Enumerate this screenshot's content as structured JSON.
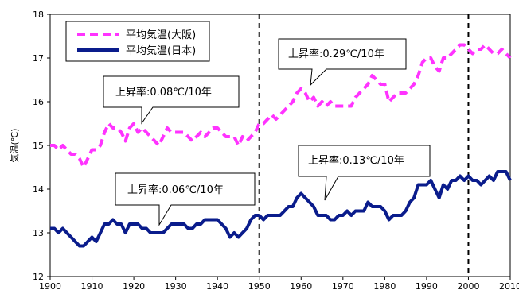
{
  "chart_data": {
    "type": "line",
    "xlabel": "",
    "ylabel": "気温(℃)",
    "xlim": [
      1900,
      2010
    ],
    "ylim": [
      12,
      18
    ],
    "x_ticks": [
      "1900",
      "1910",
      "1920",
      "1930",
      "1940",
      "1950",
      "1960",
      "1970",
      "1980",
      "1990",
      "2000",
      "2010"
    ],
    "y_ticks": [
      "12",
      "13",
      "14",
      "15",
      "16",
      "17",
      "18"
    ],
    "grid": false,
    "legend_position": "top-left",
    "series": [
      {
        "name": "平均気温(大阪)",
        "color": "#ff33ff",
        "style": "dashed",
        "points": [
          [
            1900,
            15.0
          ],
          [
            1901,
            15.0
          ],
          [
            1902,
            14.9
          ],
          [
            1903,
            15.0
          ],
          [
            1904,
            14.9
          ],
          [
            1905,
            14.8
          ],
          [
            1906,
            14.8
          ],
          [
            1907,
            14.7
          ],
          [
            1908,
            14.5
          ],
          [
            1909,
            14.7
          ],
          [
            1910,
            14.9
          ],
          [
            1911,
            14.9
          ],
          [
            1912,
            15.0
          ],
          [
            1913,
            15.3
          ],
          [
            1914,
            15.5
          ],
          [
            1915,
            15.4
          ],
          [
            1916,
            15.4
          ],
          [
            1917,
            15.3
          ],
          [
            1918,
            15.1
          ],
          [
            1919,
            15.4
          ],
          [
            1920,
            15.5
          ],
          [
            1921,
            15.3
          ],
          [
            1922,
            15.4
          ],
          [
            1923,
            15.3
          ],
          [
            1924,
            15.2
          ],
          [
            1925,
            15.1
          ],
          [
            1926,
            15.0
          ],
          [
            1927,
            15.2
          ],
          [
            1928,
            15.4
          ],
          [
            1929,
            15.3
          ],
          [
            1930,
            15.3
          ],
          [
            1931,
            15.3
          ],
          [
            1932,
            15.3
          ],
          [
            1933,
            15.2
          ],
          [
            1934,
            15.1
          ],
          [
            1935,
            15.2
          ],
          [
            1936,
            15.3
          ],
          [
            1937,
            15.2
          ],
          [
            1938,
            15.3
          ],
          [
            1939,
            15.4
          ],
          [
            1940,
            15.4
          ],
          [
            1941,
            15.3
          ],
          [
            1942,
            15.2
          ],
          [
            1943,
            15.2
          ],
          [
            1944,
            15.2
          ],
          [
            1945,
            15.0
          ],
          [
            1946,
            15.2
          ],
          [
            1947,
            15.1
          ],
          [
            1948,
            15.2
          ],
          [
            1949,
            15.3
          ],
          [
            1950,
            15.5
          ],
          [
            1951,
            15.5
          ],
          [
            1952,
            15.6
          ],
          [
            1953,
            15.7
          ],
          [
            1954,
            15.6
          ],
          [
            1955,
            15.7
          ],
          [
            1956,
            15.8
          ],
          [
            1957,
            15.9
          ],
          [
            1958,
            16.0
          ],
          [
            1959,
            16.2
          ],
          [
            1960,
            16.3
          ],
          [
            1961,
            16.2
          ],
          [
            1962,
            16.0
          ],
          [
            1963,
            16.1
          ],
          [
            1964,
            15.9
          ],
          [
            1965,
            16.0
          ],
          [
            1966,
            15.9
          ],
          [
            1967,
            16.0
          ],
          [
            1968,
            15.9
          ],
          [
            1969,
            15.9
          ],
          [
            1970,
            15.9
          ],
          [
            1971,
            15.9
          ],
          [
            1972,
            15.9
          ],
          [
            1973,
            16.1
          ],
          [
            1974,
            16.2
          ],
          [
            1975,
            16.3
          ],
          [
            1976,
            16.4
          ],
          [
            1977,
            16.6
          ],
          [
            1978,
            16.5
          ],
          [
            1979,
            16.4
          ],
          [
            1980,
            16.4
          ],
          [
            1981,
            16.0
          ],
          [
            1982,
            16.1
          ],
          [
            1983,
            16.2
          ],
          [
            1984,
            16.2
          ],
          [
            1985,
            16.2
          ],
          [
            1986,
            16.3
          ],
          [
            1987,
            16.4
          ],
          [
            1988,
            16.6
          ],
          [
            1989,
            16.9
          ],
          [
            1990,
            17.0
          ],
          [
            1991,
            17.0
          ],
          [
            1992,
            16.8
          ],
          [
            1993,
            16.7
          ],
          [
            1994,
            17.0
          ],
          [
            1995,
            17.0
          ],
          [
            1996,
            17.1
          ],
          [
            1997,
            17.2
          ],
          [
            1998,
            17.3
          ],
          [
            1999,
            17.3
          ],
          [
            2000,
            17.2
          ],
          [
            2001,
            17.1
          ],
          [
            2002,
            17.2
          ],
          [
            2003,
            17.2
          ],
          [
            2004,
            17.3
          ],
          [
            2005,
            17.2
          ],
          [
            2006,
            17.1
          ],
          [
            2007,
            17.1
          ],
          [
            2008,
            17.2
          ],
          [
            2009,
            17.1
          ],
          [
            2010,
            17.0
          ]
        ]
      },
      {
        "name": "平均気温(日本)",
        "color": "#0a1c8c",
        "style": "solid",
        "points": [
          [
            1900,
            13.1
          ],
          [
            1901,
            13.1
          ],
          [
            1902,
            13.0
          ],
          [
            1903,
            13.1
          ],
          [
            1904,
            13.0
          ],
          [
            1905,
            12.9
          ],
          [
            1906,
            12.8
          ],
          [
            1907,
            12.7
          ],
          [
            1908,
            12.7
          ],
          [
            1909,
            12.8
          ],
          [
            1910,
            12.9
          ],
          [
            1911,
            12.8
          ],
          [
            1912,
            13.0
          ],
          [
            1913,
            13.2
          ],
          [
            1914,
            13.2
          ],
          [
            1915,
            13.3
          ],
          [
            1916,
            13.2
          ],
          [
            1917,
            13.2
          ],
          [
            1918,
            13.0
          ],
          [
            1919,
            13.2
          ],
          [
            1920,
            13.2
          ],
          [
            1921,
            13.2
          ],
          [
            1922,
            13.1
          ],
          [
            1923,
            13.1
          ],
          [
            1924,
            13.0
          ],
          [
            1925,
            13.0
          ],
          [
            1926,
            13.0
          ],
          [
            1927,
            13.0
          ],
          [
            1928,
            13.1
          ],
          [
            1929,
            13.2
          ],
          [
            1930,
            13.2
          ],
          [
            1931,
            13.2
          ],
          [
            1932,
            13.2
          ],
          [
            1933,
            13.1
          ],
          [
            1934,
            13.1
          ],
          [
            1935,
            13.2
          ],
          [
            1936,
            13.2
          ],
          [
            1937,
            13.3
          ],
          [
            1938,
            13.3
          ],
          [
            1939,
            13.3
          ],
          [
            1940,
            13.3
          ],
          [
            1941,
            13.2
          ],
          [
            1942,
            13.1
          ],
          [
            1943,
            12.9
          ],
          [
            1944,
            13.0
          ],
          [
            1945,
            12.9
          ],
          [
            1946,
            13.0
          ],
          [
            1947,
            13.1
          ],
          [
            1948,
            13.3
          ],
          [
            1949,
            13.4
          ],
          [
            1950,
            13.4
          ],
          [
            1951,
            13.3
          ],
          [
            1952,
            13.4
          ],
          [
            1953,
            13.4
          ],
          [
            1954,
            13.4
          ],
          [
            1955,
            13.4
          ],
          [
            1956,
            13.5
          ],
          [
            1957,
            13.6
          ],
          [
            1958,
            13.6
          ],
          [
            1959,
            13.8
          ],
          [
            1960,
            13.9
          ],
          [
            1961,
            13.8
          ],
          [
            1962,
            13.7
          ],
          [
            1963,
            13.6
          ],
          [
            1964,
            13.4
          ],
          [
            1965,
            13.4
          ],
          [
            1966,
            13.4
          ],
          [
            1967,
            13.3
          ],
          [
            1968,
            13.3
          ],
          [
            1969,
            13.4
          ],
          [
            1970,
            13.4
          ],
          [
            1971,
            13.5
          ],
          [
            1972,
            13.4
          ],
          [
            1973,
            13.5
          ],
          [
            1974,
            13.5
          ],
          [
            1975,
            13.5
          ],
          [
            1976,
            13.7
          ],
          [
            1977,
            13.6
          ],
          [
            1978,
            13.6
          ],
          [
            1979,
            13.6
          ],
          [
            1980,
            13.5
          ],
          [
            1981,
            13.3
          ],
          [
            1982,
            13.4
          ],
          [
            1983,
            13.4
          ],
          [
            1984,
            13.4
          ],
          [
            1985,
            13.5
          ],
          [
            1986,
            13.7
          ],
          [
            1987,
            13.8
          ],
          [
            1988,
            14.1
          ],
          [
            1989,
            14.1
          ],
          [
            1990,
            14.1
          ],
          [
            1991,
            14.2
          ],
          [
            1992,
            14.0
          ],
          [
            1993,
            13.8
          ],
          [
            1994,
            14.1
          ],
          [
            1995,
            14.0
          ],
          [
            1996,
            14.2
          ],
          [
            1997,
            14.2
          ],
          [
            1998,
            14.3
          ],
          [
            1999,
            14.2
          ],
          [
            2000,
            14.3
          ],
          [
            2001,
            14.2
          ],
          [
            2002,
            14.2
          ],
          [
            2003,
            14.1
          ],
          [
            2004,
            14.2
          ],
          [
            2005,
            14.3
          ],
          [
            2006,
            14.2
          ],
          [
            2007,
            14.4
          ],
          [
            2008,
            14.4
          ],
          [
            2009,
            14.4
          ],
          [
            2010,
            14.2
          ]
        ]
      }
    ],
    "vertical_markers": [
      1950,
      2000
    ],
    "annotations": [
      {
        "text": "上昇率:0.08℃/10年",
        "target": [
          1922,
          15.4
        ]
      },
      {
        "text": "上昇率:0.29℃/10年",
        "target": [
          1963,
          16.35
        ]
      },
      {
        "text": "上昇率:0.06℃/10年",
        "target": [
          1926,
          13.15
        ]
      },
      {
        "text": "上昇率:0.13℃/10年",
        "target": [
          1963,
          13.75
        ]
      }
    ]
  }
}
